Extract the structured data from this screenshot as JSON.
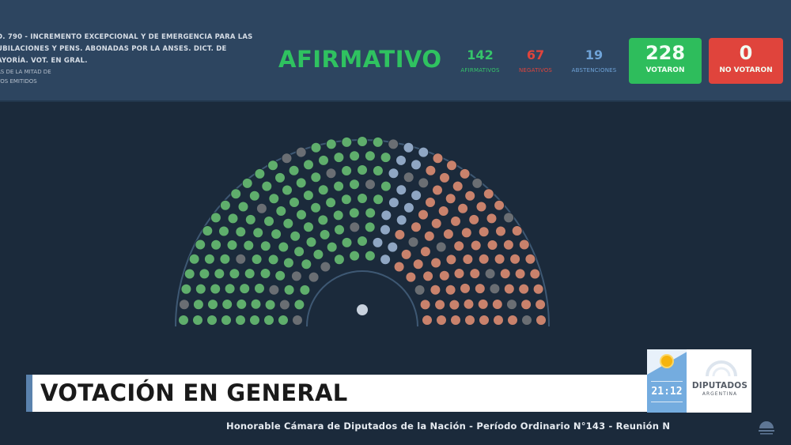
{
  "header": {
    "motion_lines": [
      "D. 790 - INCREMENTO EXCEPCIONAL Y DE EMERGENCIA PARA LAS",
      "UBILACIONES Y PENS. ABONADAS POR LA ANSES. DICT. DE",
      "AYORÍA. VOT. EN GRAL."
    ],
    "majority_lines": [
      "AS DE LA MITAD DE",
      "TOS EMITIDOS"
    ],
    "result": "AFIRMATIVO",
    "tallies": [
      {
        "value": "142",
        "label": "AFIRMATIVOS",
        "color": "#35c46a"
      },
      {
        "value": "67",
        "label": "NEGATIVOS",
        "color": "#e0443c"
      },
      {
        "value": "19",
        "label": "ABSTENCIONES",
        "color": "#6fa3d8"
      }
    ],
    "voted": {
      "value": "228",
      "label": "VOTARON",
      "color": "#2ebd5c"
    },
    "not_voted": {
      "value": "0",
      "label": "NO VOTARON",
      "color": "#e0443c"
    }
  },
  "chamber": {
    "total_seats": 257,
    "afirmativos": 142,
    "negativos": 67,
    "abstenciones": 19,
    "absent": 29,
    "president_seat": 1,
    "colors": {
      "afirmativo": "#5fae6c",
      "negativo": "#c9826c",
      "abstencion": "#8fa6c3",
      "ausente": "#6a6e73",
      "president": "#c9d2de"
    }
  },
  "lower_third": {
    "title": "VOTACIÓN EN GENERAL",
    "clock": "21:12",
    "logo_title": "DIPUTADOS",
    "logo_subtitle": "ARGENTINA"
  },
  "ticker": {
    "text": "Honorable Cámara de Diputados de la Nación - Período Ordinario N°143 - Reunión N"
  }
}
